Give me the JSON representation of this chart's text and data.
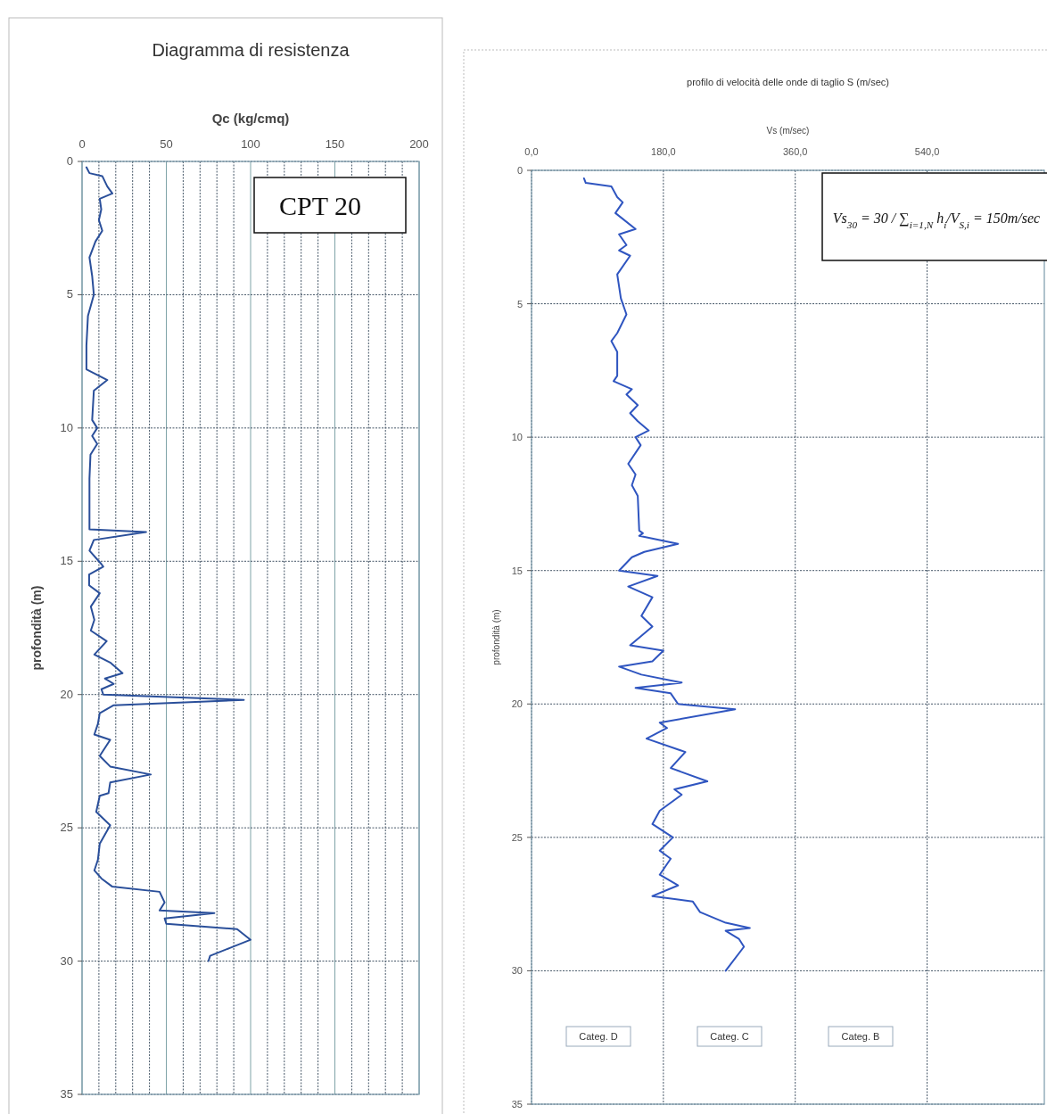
{
  "chart_data": [
    {
      "type": "line",
      "title": "Diagramma di resistenza",
      "xlabel": "Qc (kg/cmq)",
      "ylabel": "profondità (m)",
      "xlim": [
        0,
        200
      ],
      "ylim": [
        35,
        0
      ],
      "xticks": [
        0,
        {
          "value": 10,
          "label": null
        },
        {
          "value": 20,
          "label": null
        },
        {
          "value": 30,
          "label": null
        },
        {
          "value": 40,
          "label": null
        },
        50,
        {
          "value": 60,
          "label": null
        },
        {
          "value": 70,
          "label": null
        },
        {
          "value": 80,
          "label": null
        },
        {
          "value": 90,
          "label": null
        },
        100,
        {
          "value": 110,
          "label": null
        },
        {
          "value": 120,
          "label": null
        },
        {
          "value": 130,
          "label": null
        },
        {
          "value": 140,
          "label": null
        },
        150,
        {
          "value": 160,
          "label": null
        },
        {
          "value": 170,
          "label": null
        },
        {
          "value": 180,
          "label": null
        },
        {
          "value": 190,
          "label": null
        },
        200
      ],
      "yticks": [
        0,
        5,
        10,
        15,
        20,
        25,
        30,
        35
      ],
      "grid": true,
      "annotations": [
        "CPT 20"
      ],
      "series": [
        {
          "color": "#2a4f9a",
          "x": [
            2.6,
            4.4,
            12,
            15,
            18,
            10.5,
            11.4,
            10,
            12,
            8,
            4.4,
            6,
            7,
            3.5,
            2.6,
            2.6,
            15,
            7,
            6,
            9,
            6,
            9,
            5,
            4.4,
            4.4,
            38,
            7,
            4.4,
            11.4,
            12.6,
            4.2,
            4.2,
            10.5,
            5.2,
            7.3,
            5.2,
            14.6,
            7.3,
            16.7,
            24,
            13.6,
            18.8,
            11.5,
            12.6,
            96,
            18.8,
            10.5,
            9.4,
            7.3,
            16.7,
            10.5,
            16.7,
            40.8,
            16.7,
            15.7,
            10.5,
            8.4,
            16.7,
            10.5,
            9.4,
            7.3,
            11.5,
            17.8,
            46,
            49,
            46,
            78.5,
            49,
            50,
            92,
            100,
            88,
            76,
            75
          ],
          "values": [
            0.22,
            0.44,
            0.55,
            0.94,
            1.2,
            1.4,
            1.8,
            2.2,
            2.6,
            3.0,
            3.6,
            4.3,
            5,
            5.8,
            6.9,
            7.8,
            8.2,
            8.6,
            9.7,
            10,
            10.3,
            10.6,
            11,
            11.9,
            13.8,
            13.9,
            14.2,
            14.6,
            15.1,
            15.2,
            15.5,
            15.9,
            16.2,
            16.7,
            17.2,
            17.6,
            18.0,
            18.5,
            18.8,
            19.2,
            19.4,
            19.6,
            19.8,
            20.0,
            20.2,
            20.4,
            20.7,
            21.1,
            21.5,
            21.7,
            22.3,
            22.7,
            23.0,
            23.3,
            23.7,
            23.8,
            24.4,
            24.9,
            25.6,
            26.2,
            26.6,
            26.9,
            27.2,
            27.4,
            27.8,
            28.1,
            28.2,
            28.4,
            28.6,
            28.8,
            29.2,
            29.5,
            29.8,
            30.0
          ]
        }
      ]
    },
    {
      "type": "line",
      "title": "profilo di velocità delle onde di taglio S (m/sec)",
      "xlabel": "Vs (m/sec)",
      "ylabel": "profondità (m)",
      "xlim": [
        0,
        700
      ],
      "ylim": [
        35,
        0
      ],
      "xticks": [
        {
          "value": 0,
          "label": "0,0"
        },
        {
          "value": 180,
          "label": "180,0"
        },
        {
          "value": 360,
          "label": "360,0"
        },
        {
          "value": 540,
          "label": "540,0"
        }
      ],
      "yticks": [
        0,
        5,
        10,
        15,
        20,
        25,
        30,
        35
      ],
      "grid": true,
      "annotations": [
        "Vs$_{30}$ = 30 / ∑$_{i=1,N}$ h$_{i}$/V$_{S,i}$ = 150m/sec",
        "Categ. D",
        "Categ. C",
        "Categ. B"
      ],
      "series": [
        {
          "color": "#2f55c0",
          "x": [
            71.6,
            74,
            109,
            117,
            124.5,
            114.5,
            142,
            119.5,
            129.6,
            119.5,
            134.6,
            117,
            122,
            129.6,
            117,
            109,
            117,
            117,
            112,
            137,
            129.6,
            145,
            134.6,
            145,
            160,
            142,
            149,
            132,
            142,
            137,
            145,
            147,
            152,
            147,
            200,
            154,
            137,
            119.5,
            172,
            132,
            165,
            150,
            165,
            134.6,
            180,
            165,
            119.5,
            150,
            205,
            142,
            190,
            200,
            278,
            175,
            185,
            157,
            210,
            190,
            240,
            195,
            205,
            175,
            165,
            193,
            175,
            190,
            175,
            200,
            165,
            220,
            230,
            265,
            298,
            265,
            283,
            290,
            265
          ],
          "values": [
            0.3,
            0.47,
            0.6,
            1.0,
            1.2,
            1.6,
            2.2,
            2.4,
            2.8,
            3.0,
            3.2,
            3.9,
            4.8,
            5.4,
            6.1,
            6.4,
            6.8,
            7.7,
            7.9,
            8.2,
            8.4,
            8.8,
            9.1,
            9.4,
            9.75,
            10.0,
            10.3,
            11.0,
            11.4,
            11.8,
            12.2,
            13.5,
            13.6,
            13.7,
            14.0,
            14.3,
            14.5,
            15.0,
            15.2,
            15.6,
            16.0,
            16.7,
            17.1,
            17.8,
            18.0,
            18.4,
            18.6,
            18.9,
            19.2,
            19.4,
            19.6,
            20.0,
            20.2,
            20.7,
            20.9,
            21.3,
            21.8,
            22.4,
            22.9,
            23.2,
            23.4,
            24.0,
            24.5,
            25.0,
            25.5,
            25.8,
            26.4,
            26.8,
            27.2,
            27.4,
            27.8,
            28.2,
            28.4,
            28.5,
            28.8,
            29.1,
            30.0
          ]
        }
      ]
    }
  ]
}
